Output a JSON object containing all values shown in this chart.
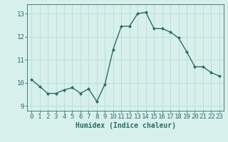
{
  "x": [
    0,
    1,
    2,
    3,
    4,
    5,
    6,
    7,
    8,
    9,
    10,
    11,
    12,
    13,
    14,
    15,
    16,
    17,
    18,
    19,
    20,
    21,
    22,
    23
  ],
  "y": [
    10.15,
    9.85,
    9.55,
    9.55,
    9.7,
    9.8,
    9.55,
    9.75,
    9.2,
    9.95,
    11.45,
    12.45,
    12.45,
    13.0,
    13.05,
    12.35,
    12.35,
    12.2,
    11.95,
    11.35,
    10.7,
    10.7,
    10.45,
    10.3
  ],
  "line_color": "#2a6e63",
  "marker": "D",
  "marker_size": 2.0,
  "linewidth": 1.0,
  "bg_color": "#d8f0ec",
  "grid_color": "#b8dbd6",
  "xlabel": "Humidex (Indice chaleur)",
  "xlabel_fontsize": 7,
  "xtick_labels": [
    "0",
    "1",
    "2",
    "3",
    "4",
    "5",
    "6",
    "7",
    "8",
    "9",
    "10",
    "11",
    "12",
    "13",
    "14",
    "15",
    "16",
    "17",
    "18",
    "19",
    "20",
    "21",
    "22",
    "23"
  ],
  "ytick_labels": [
    "9",
    "10",
    "11",
    "12",
    "13"
  ],
  "yticks": [
    9,
    10,
    11,
    12,
    13
  ],
  "ylim": [
    8.8,
    13.4
  ],
  "xlim": [
    -0.5,
    23.5
  ],
  "tick_color": "#2a6e63",
  "tick_fontsize": 6.5
}
